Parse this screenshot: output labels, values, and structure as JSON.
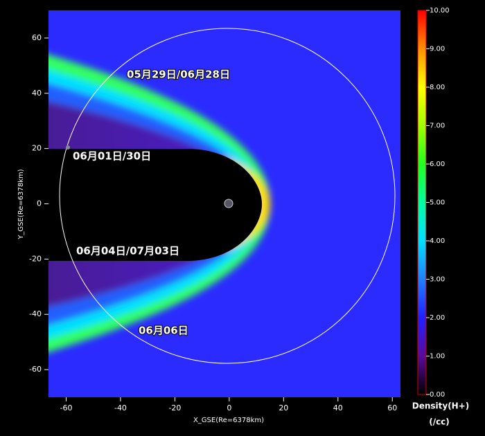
{
  "chart_data": {
    "type": "heatmap",
    "xlabel": "X_GSE(Re=6378km)",
    "ylabel": "Y_GSE(Re=6378km)",
    "xlim": [
      -66.5,
      63
    ],
    "ylim": [
      -70,
      70
    ],
    "xticks": [
      -60,
      -40,
      -20,
      0,
      20,
      40,
      60
    ],
    "yticks": [
      -60,
      -40,
      -20,
      0,
      20,
      40,
      60
    ],
    "annotations": [
      "05月29日/06月28日",
      "06月01日/30日",
      "06月04日/07月03日",
      "06月06日"
    ],
    "colorbar_label": "Density(H+)",
    "colorbar_unit": "(/cc)",
    "colorbar_lim": [
      0,
      10
    ],
    "colorbar_ticks": [
      {
        "value": 0,
        "label": "0.00"
      },
      {
        "value": 1,
        "label": "1.00"
      },
      {
        "value": 2,
        "label": "2.00"
      },
      {
        "value": 3,
        "label": "3.00"
      },
      {
        "value": 4,
        "label": "4.00"
      },
      {
        "value": 5,
        "label": "5.00"
      },
      {
        "value": 6,
        "label": "6.00"
      },
      {
        "value": 7,
        "label": "7.00"
      },
      {
        "value": 8,
        "label": "8.00"
      },
      {
        "value": 9,
        "label": "9.00"
      },
      {
        "value": 10,
        "label": "10.00"
      }
    ]
  }
}
